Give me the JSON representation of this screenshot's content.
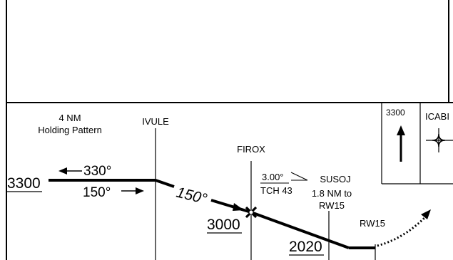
{
  "holding": {
    "line1": "4 NM",
    "line2": "Holding Pattern",
    "outbound_course": "330°",
    "inbound_course": "150°"
  },
  "fixes": {
    "ivule": "IVULE",
    "firox": "FIROX",
    "susoj": "SUSOJ",
    "susoj_dist_line1": "1.8 NM to",
    "susoj_dist_line2": "RW15",
    "runway": "RW15",
    "icabi": "ICABI"
  },
  "altitudes": {
    "initial": "3300",
    "firox": "3000",
    "susoj": "2020",
    "missed_box": "3300"
  },
  "glidepath": {
    "angle": "3.00°",
    "tch": "TCH 43"
  },
  "final_course": "150°",
  "colors": {
    "ink": "#000000",
    "paper": "#ffffff"
  }
}
